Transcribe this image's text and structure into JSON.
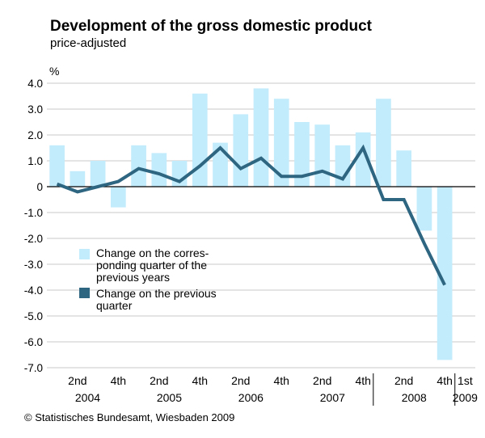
{
  "title": "Development of the gross domestic product",
  "subtitle": "price-adjusted",
  "source": "© Statistisches Bundesamt, Wiesbaden 2009",
  "colors": {
    "bars": "#c2ebfb",
    "line": "#2e6580",
    "grid": "#c8c8c8",
    "zero": "#000000"
  },
  "chart_data": {
    "type": "bar",
    "ylabel": "%",
    "ylim": [
      -7.0,
      4.0
    ],
    "yticks": [
      "4.0",
      "3.0",
      "2.0",
      "1.0",
      "0",
      "-1.0",
      "-2.0",
      "-3.0",
      "-4.0",
      "-5.0",
      "-6.0",
      "-7.0"
    ],
    "grid": true,
    "categories": [
      "2004 Q1",
      "2004 Q2",
      "2004 Q3",
      "2004 Q4",
      "2005 Q1",
      "2005 Q2",
      "2005 Q3",
      "2005 Q4",
      "2006 Q1",
      "2006 Q2",
      "2006 Q3",
      "2006 Q4",
      "2007 Q1",
      "2007 Q2",
      "2007 Q3",
      "2007 Q4",
      "2008 Q1",
      "2008 Q2",
      "2008 Q3",
      "2008 Q4",
      "2009 Q1"
    ],
    "series": [
      {
        "name": "Change on the corres-\nponding quarter of the\nprevious years",
        "type": "bar",
        "values": [
          1.6,
          0.6,
          1.0,
          -0.8,
          1.6,
          1.3,
          1.0,
          3.6,
          1.7,
          2.8,
          3.8,
          3.4,
          2.5,
          2.4,
          1.6,
          2.1,
          3.4,
          1.4,
          -1.7,
          -6.7,
          null
        ]
      },
      {
        "name": "Change on the previous\nquarter",
        "type": "line",
        "values": [
          0.1,
          -0.2,
          0.0,
          0.2,
          0.7,
          0.5,
          0.2,
          0.8,
          1.5,
          0.7,
          1.1,
          0.4,
          0.4,
          0.6,
          0.3,
          1.5,
          -0.5,
          -0.5,
          -2.2,
          -3.8,
          null
        ]
      }
    ],
    "x_tick_labels": [
      {
        "index": 1,
        "label": "2nd"
      },
      {
        "index": 3,
        "label": "4th"
      },
      {
        "index": 5,
        "label": "2nd"
      },
      {
        "index": 7,
        "label": "4th"
      },
      {
        "index": 9,
        "label": "2nd"
      },
      {
        "index": 11,
        "label": "4th"
      },
      {
        "index": 13,
        "label": "2nd"
      },
      {
        "index": 15,
        "label": "4th"
      },
      {
        "index": 17,
        "label": "2nd"
      },
      {
        "index": 19,
        "label": "4th"
      },
      {
        "index": 20,
        "label": "1st"
      }
    ],
    "years": [
      {
        "from": 0,
        "to": 3,
        "label": "2004"
      },
      {
        "from": 4,
        "to": 7,
        "label": "2005"
      },
      {
        "from": 8,
        "to": 11,
        "label": "2006"
      },
      {
        "from": 12,
        "to": 15,
        "label": "2007"
      },
      {
        "from": 16,
        "to": 19,
        "label": "2008"
      },
      {
        "from": 20,
        "to": 20,
        "label": "2009"
      }
    ],
    "legend_position": "lower-left"
  }
}
